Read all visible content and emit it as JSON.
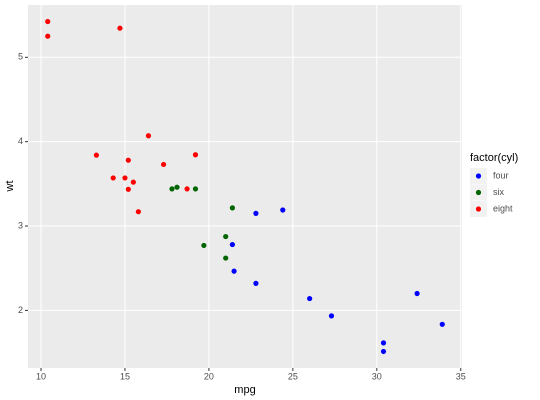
{
  "chart_data": {
    "type": "scatter",
    "x_label": "mpg",
    "y_label": "wt",
    "legend_title": "factor(cyl)",
    "legend_position": "right",
    "series": [
      {
        "name": "four",
        "color": "#0000ff",
        "x": [
          22.8,
          24.4,
          22.8,
          32.4,
          30.4,
          33.9,
          21.5,
          27.3,
          26.0,
          30.4,
          21.4
        ],
        "values": [
          2.32,
          3.19,
          3.15,
          2.2,
          1.615,
          1.835,
          2.465,
          1.935,
          2.14,
          1.513,
          2.78
        ]
      },
      {
        "name": "six",
        "color": "#006400",
        "x": [
          21.0,
          21.0,
          21.4,
          18.1,
          19.2,
          17.8,
          19.7
        ],
        "values": [
          2.62,
          2.875,
          3.215,
          3.46,
          3.44,
          3.44,
          2.77
        ]
      },
      {
        "name": "eight",
        "color": "#ff0000",
        "x": [
          18.7,
          14.3,
          16.4,
          17.3,
          15.2,
          10.4,
          10.4,
          14.7,
          15.5,
          15.2,
          13.3,
          19.2,
          15.8,
          15.0
        ],
        "values": [
          3.44,
          3.57,
          4.07,
          3.73,
          3.78,
          5.25,
          5.424,
          5.345,
          3.52,
          3.435,
          3.84,
          3.845,
          3.17,
          3.57
        ]
      }
    ],
    "xlim": [
      9.225,
      35.075
    ],
    "xticks": [
      10,
      15,
      20,
      25,
      30,
      35
    ],
    "ylim": [
      1.317,
      5.62
    ],
    "yticks": [
      2,
      3,
      4,
      5
    ],
    "grid": true
  }
}
